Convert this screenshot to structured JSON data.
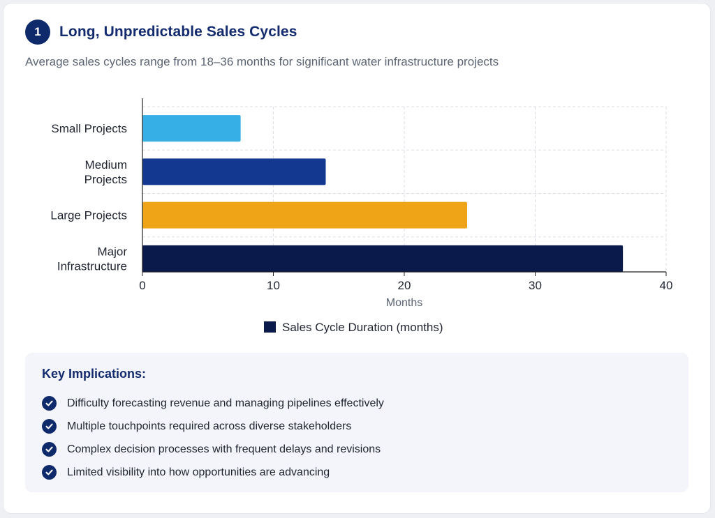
{
  "header": {
    "step_number": "1",
    "title": "Long, Unpredictable Sales Cycles",
    "subtitle": "Average sales cycles range from 18–36 months for significant water infrastructure projects"
  },
  "chart_data": {
    "type": "bar",
    "orientation": "horizontal",
    "categories": [
      [
        "Small Projects"
      ],
      [
        "Medium",
        "Projects"
      ],
      [
        "Large Projects"
      ],
      [
        "Major",
        "Infrastructure"
      ]
    ],
    "series": [
      {
        "name": "Sales Cycle Duration (months)",
        "values": [
          7.5,
          14,
          24.8,
          36.7
        ]
      }
    ],
    "bar_colors": [
      "#36aee6",
      "#12398f",
      "#eea416",
      "#0a1a4a"
    ],
    "legend_color": "#0a1a4a",
    "xlabel": "Months",
    "xlim": [
      0,
      40
    ],
    "xticks": [
      0,
      10,
      20,
      30,
      40
    ],
    "grid": true,
    "legend": "bottom"
  },
  "implications": {
    "title": "Key Implications:",
    "items": [
      "Difficulty forecasting revenue and managing pipelines effectively",
      "Multiple touchpoints required across diverse stakeholders",
      "Complex decision processes with frequent delays and revisions",
      "Limited visibility into how opportunities are advancing"
    ]
  }
}
